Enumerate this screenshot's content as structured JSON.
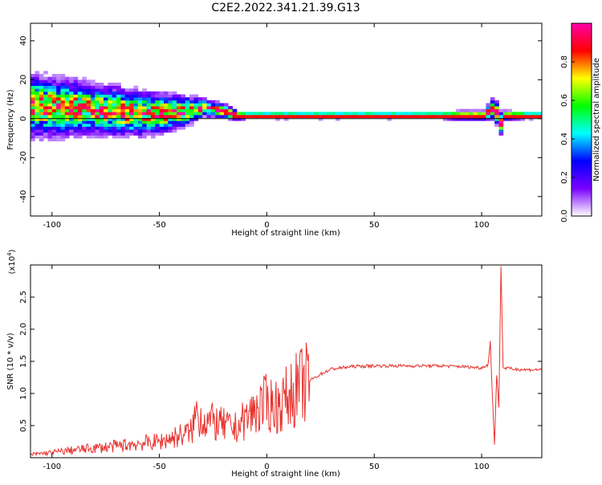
{
  "title": "C2E2.2022.341.21.39.G13",
  "chart_data": [
    {
      "type": "heatmap",
      "xlabel": "Height of straight line (km)",
      "ylabel": "Frequency (Hz)",
      "xlim": [
        -110,
        128
      ],
      "ylim": [
        -50,
        49
      ],
      "x_ticks": [
        -100,
        -50,
        0,
        50,
        100
      ],
      "y_ticks": [
        -40,
        -20,
        0,
        20,
        40
      ],
      "reference_line_y": 0,
      "colorbar": {
        "label": "Normalized spectral amplitude",
        "range": [
          0.0,
          1.0
        ],
        "ticks": [
          "0.0",
          "0.2",
          "0.4",
          "0.6",
          "0.8"
        ],
        "colors": [
          "#ffffff",
          "#7a00ff",
          "#0000ff",
          "#00ffff",
          "#00ff00",
          "#ffff00",
          "#ff0000",
          "#ff00aa"
        ]
      },
      "ridge": {
        "x": [
          -110,
          -100,
          -90,
          -80,
          -70,
          -60,
          -50,
          -40,
          -30,
          -20,
          -15,
          -10,
          0,
          10,
          20,
          30,
          40,
          50,
          60,
          70,
          80,
          90,
          100,
          105,
          108,
          110,
          120,
          128
        ],
        "frequency": [
          6,
          5,
          5,
          4,
          3,
          2,
          2,
          3,
          5,
          3,
          1,
          1,
          1,
          1,
          1,
          1,
          1,
          1,
          1,
          1,
          1,
          1,
          1,
          5,
          -3,
          1,
          1,
          1
        ],
        "spread": [
          14,
          13,
          12,
          11,
          11,
          10,
          9,
          7,
          4,
          3,
          2,
          1.5,
          1.5,
          1.5,
          1.5,
          1.5,
          1.5,
          1.5,
          1.5,
          1.5,
          1.5,
          2,
          2,
          5,
          5,
          2,
          1.5,
          1.5
        ]
      }
    },
    {
      "type": "line",
      "xlabel": "Height of straight line (km)",
      "ylabel": "SNR (10 * v/v)",
      "y_multiplier_label": "(x10",
      "y_multiplier_exp": "4",
      "y_multiplier_close": ")",
      "color": "#e8332f",
      "xlim": [
        -110,
        128
      ],
      "ylim": [
        0,
        3.0
      ],
      "x_ticks": [
        -100,
        -50,
        0,
        50,
        100
      ],
      "y_ticks": [
        0.5,
        1.0,
        1.5,
        2.0,
        2.5
      ],
      "series": [
        {
          "x": [
            -110,
            -100,
            -90,
            -80,
            -70,
            -60,
            -50,
            -45,
            -40,
            -35,
            -33,
            -30,
            -25,
            -20,
            -15,
            -10,
            -5,
            0,
            5,
            10,
            15,
            20,
            25,
            30,
            40,
            50,
            60,
            70,
            80,
            90,
            100,
            103,
            104,
            105,
            106,
            107,
            108,
            109,
            110,
            115,
            120,
            128
          ],
          "y": [
            0.05,
            0.08,
            0.12,
            0.15,
            0.18,
            0.22,
            0.25,
            0.3,
            0.35,
            0.4,
            0.7,
            0.6,
            0.55,
            0.5,
            0.45,
            0.6,
            0.75,
            0.85,
            0.8,
            0.95,
            1.1,
            1.2,
            1.3,
            1.38,
            1.42,
            1.43,
            1.43,
            1.43,
            1.43,
            1.42,
            1.4,
            1.45,
            1.8,
            1.0,
            0.2,
            1.3,
            0.8,
            3.0,
            1.4,
            1.38,
            1.37,
            1.37
          ]
        }
      ]
    }
  ]
}
